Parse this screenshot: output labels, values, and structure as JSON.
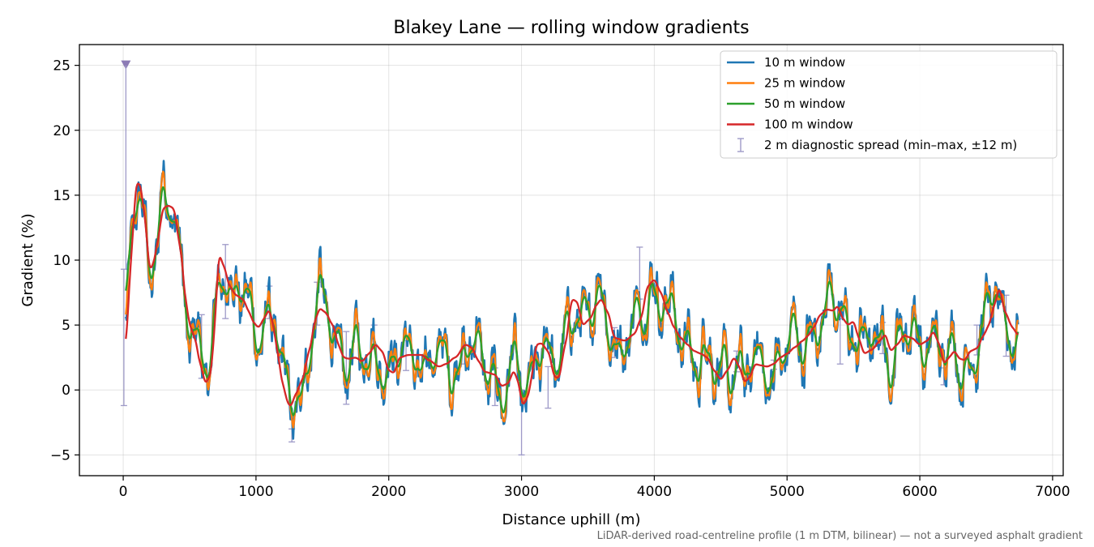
{
  "chart_data": {
    "type": "line",
    "title": "Blakey Lane — rolling window gradients",
    "xlabel": "Distance uphill (m)",
    "ylabel": "Gradient (%)",
    "footnote": "LiDAR-derived road-centreline profile (1 m DTM, bilinear) — not a surveyed asphalt gradient",
    "xlim": [
      -330,
      7080
    ],
    "ylim": [
      -6.6,
      26.6
    ],
    "xticks": [
      0,
      1000,
      2000,
      3000,
      4000,
      5000,
      6000,
      7000
    ],
    "yticks": [
      -5,
      0,
      5,
      10,
      15,
      20,
      25
    ],
    "grid": true,
    "legend_position": "top-right",
    "anchors": [
      [
        20,
        2.5
      ],
      [
        40,
        7
      ],
      [
        60,
        10.5
      ],
      [
        100,
        16
      ],
      [
        130,
        15.8
      ],
      [
        160,
        13.5
      ],
      [
        200,
        9.2
      ],
      [
        230,
        9.8
      ],
      [
        260,
        11.5
      ],
      [
        300,
        14
      ],
      [
        340,
        14.2
      ],
      [
        380,
        14
      ],
      [
        430,
        11
      ],
      [
        470,
        7
      ],
      [
        500,
        5
      ],
      [
        540,
        4
      ],
      [
        580,
        2
      ],
      [
        620,
        0.5
      ],
      [
        660,
        1.2
      ],
      [
        690,
        5
      ],
      [
        720,
        10.5
      ],
      [
        760,
        9.5
      ],
      [
        800,
        8
      ],
      [
        850,
        7.3
      ],
      [
        900,
        7
      ],
      [
        950,
        6
      ],
      [
        980,
        5.2
      ],
      [
        1020,
        4.8
      ],
      [
        1060,
        5.5
      ],
      [
        1100,
        6.2
      ],
      [
        1130,
        5
      ],
      [
        1160,
        3
      ],
      [
        1200,
        0.5
      ],
      [
        1240,
        -1
      ],
      [
        1260,
        -1.3
      ],
      [
        1300,
        -0.3
      ],
      [
        1350,
        0.8
      ],
      [
        1400,
        3
      ],
      [
        1450,
        5.5
      ],
      [
        1480,
        6.3
      ],
      [
        1520,
        6
      ],
      [
        1580,
        5
      ],
      [
        1620,
        3.5
      ],
      [
        1660,
        2.5
      ],
      [
        1700,
        2.4
      ],
      [
        1750,
        2.5
      ],
      [
        1800,
        2.2
      ],
      [
        1850,
        2.8
      ],
      [
        1900,
        3.5
      ],
      [
        1950,
        3
      ],
      [
        2000,
        1.5
      ],
      [
        2040,
        1.3
      ],
      [
        2080,
        2.5
      ],
      [
        2150,
        2.7
      ],
      [
        2250,
        2.7
      ],
      [
        2300,
        2.3
      ],
      [
        2380,
        1.8
      ],
      [
        2430,
        2
      ],
      [
        2500,
        2.5
      ],
      [
        2580,
        3.5
      ],
      [
        2620,
        3.3
      ],
      [
        2680,
        2.2
      ],
      [
        2720,
        1.4
      ],
      [
        2800,
        1.2
      ],
      [
        2850,
        0.3
      ],
      [
        2900,
        0.5
      ],
      [
        2940,
        1.5
      ],
      [
        2970,
        0.8
      ],
      [
        3010,
        -1.2
      ],
      [
        3050,
        -0.5
      ],
      [
        3080,
        1.2
      ],
      [
        3110,
        3.5
      ],
      [
        3150,
        3.6
      ],
      [
        3200,
        3
      ],
      [
        3250,
        1
      ],
      [
        3280,
        0.9
      ],
      [
        3330,
        3.5
      ],
      [
        3380,
        7
      ],
      [
        3420,
        6.8
      ],
      [
        3460,
        5
      ],
      [
        3520,
        5.5
      ],
      [
        3560,
        6.5
      ],
      [
        3600,
        7
      ],
      [
        3650,
        6
      ],
      [
        3700,
        4
      ],
      [
        3780,
        3.8
      ],
      [
        3850,
        4.3
      ],
      [
        3900,
        5.5
      ],
      [
        3950,
        8
      ],
      [
        4000,
        8.5
      ],
      [
        4050,
        7.5
      ],
      [
        4100,
        6
      ],
      [
        4150,
        4.8
      ],
      [
        4200,
        4
      ],
      [
        4250,
        3.5
      ],
      [
        4300,
        3
      ],
      [
        4350,
        2.8
      ],
      [
        4400,
        2.5
      ],
      [
        4450,
        1.5
      ],
      [
        4500,
        0.8
      ],
      [
        4550,
        1.5
      ],
      [
        4600,
        2.5
      ],
      [
        4640,
        1.8
      ],
      [
        4680,
        0.6
      ],
      [
        4720,
        1
      ],
      [
        4760,
        2
      ],
      [
        4800,
        1.9
      ],
      [
        4850,
        1.8
      ],
      [
        4900,
        2
      ],
      [
        4950,
        2.5
      ],
      [
        5000,
        2.8
      ],
      [
        5060,
        3.3
      ],
      [
        5120,
        3.8
      ],
      [
        5160,
        4.2
      ],
      [
        5200,
        4.8
      ],
      [
        5250,
        5.8
      ],
      [
        5300,
        6.2
      ],
      [
        5350,
        6.1
      ],
      [
        5380,
        6.5
      ],
      [
        5420,
        5.5
      ],
      [
        5460,
        5
      ],
      [
        5500,
        5.3
      ],
      [
        5540,
        4
      ],
      [
        5580,
        2.8
      ],
      [
        5640,
        3.1
      ],
      [
        5700,
        3.8
      ],
      [
        5740,
        4.3
      ],
      [
        5780,
        3
      ],
      [
        5830,
        3.5
      ],
      [
        5880,
        4.2
      ],
      [
        5940,
        4
      ],
      [
        6000,
        3.5
      ],
      [
        6060,
        3.8
      ],
      [
        6100,
        4.5
      ],
      [
        6150,
        3.5
      ],
      [
        6180,
        2
      ],
      [
        6220,
        2.5
      ],
      [
        6260,
        3
      ],
      [
        6300,
        2.4
      ],
      [
        6340,
        2.3
      ],
      [
        6380,
        3
      ],
      [
        6430,
        3.2
      ],
      [
        6480,
        4.2
      ],
      [
        6520,
        5
      ],
      [
        6560,
        6.5
      ],
      [
        6600,
        7.9
      ],
      [
        6640,
        6
      ],
      [
        6700,
        4.8
      ],
      [
        6740,
        4.2
      ]
    ],
    "series": [
      {
        "name": "10 m window",
        "color": "#1f77b4",
        "window": 10
      },
      {
        "name": "25 m window",
        "color": "#ff7f0e",
        "window": 25
      },
      {
        "name": "50 m window",
        "color": "#2ca02c",
        "window": 50
      },
      {
        "name": "100 m window",
        "color": "#d62728",
        "window": 100
      }
    ],
    "spread": {
      "name": "2 m diagnostic spread (min–max, ±12 m)",
      "color": "#9e9ac8",
      "bars": [
        [
          5,
          -1.2,
          9.3
        ],
        [
          20,
          25,
          25
        ],
        [
          590,
          0.9,
          5.8
        ],
        [
          770,
          5.5,
          11.2
        ],
        [
          1100,
          5.5,
          8
        ],
        [
          1270,
          -4,
          -3
        ],
        [
          1460,
          5,
          8.3
        ],
        [
          1680,
          -1.1,
          4.5
        ],
        [
          1890,
          3.5,
          5
        ],
        [
          2130,
          1.5,
          3.8
        ],
        [
          2570,
          2,
          3.5
        ],
        [
          2800,
          -1.2,
          1.7
        ],
        [
          3000,
          -5,
          0
        ],
        [
          3200,
          -1.4,
          1.8
        ],
        [
          3700,
          2.5,
          4.8
        ],
        [
          3890,
          7,
          11
        ],
        [
          4620,
          1.4,
          3
        ],
        [
          4900,
          1.6,
          2.3
        ],
        [
          5400,
          2,
          5.5
        ],
        [
          5720,
          2.8,
          5.2
        ],
        [
          6180,
          0.4,
          1.7
        ],
        [
          6430,
          2.7,
          5
        ],
        [
          6650,
          2.6,
          7.3
        ]
      ]
    }
  }
}
